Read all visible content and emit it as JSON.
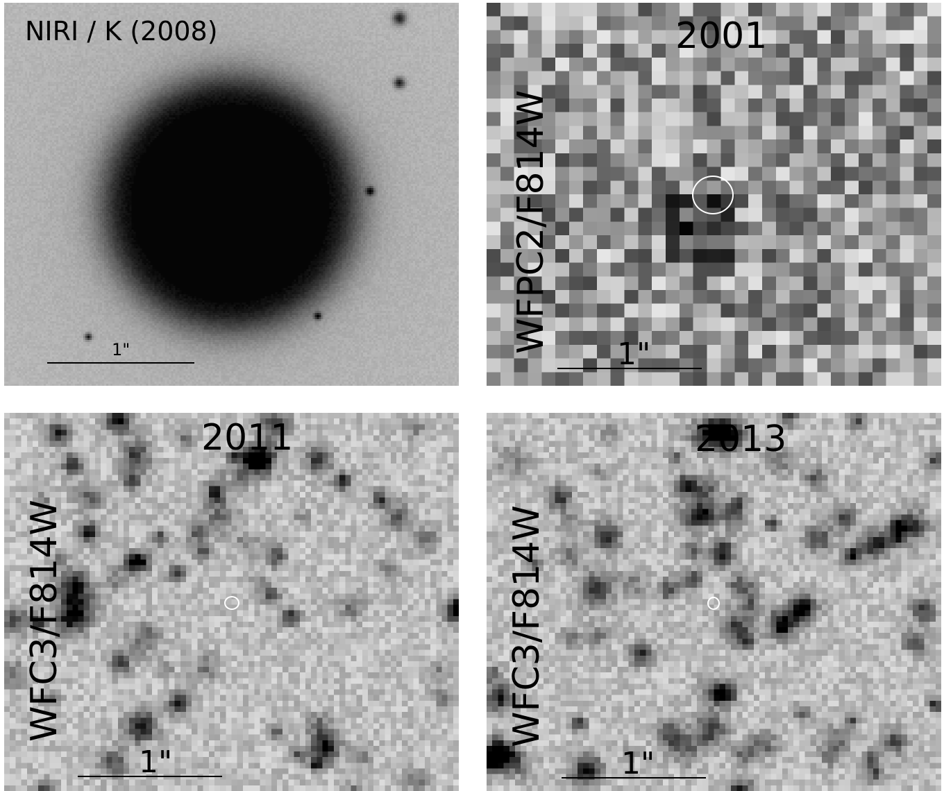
{
  "panels": [
    {
      "title": "NIRI / K (2008)",
      "side_label": "",
      "scale_label": "1\""
    },
    {
      "title": "2001",
      "side_label": "WFPC2/F814W",
      "scale_label": "1\""
    },
    {
      "title": "2011",
      "side_label": "WFC3/F814W",
      "scale_label": "1\""
    },
    {
      "title": "2013",
      "side_label": "WFC3/F814W",
      "scale_label": "1\""
    }
  ],
  "colors": {
    "background": "#ffffff",
    "ink": "#000000",
    "marker": "#ffffff"
  }
}
